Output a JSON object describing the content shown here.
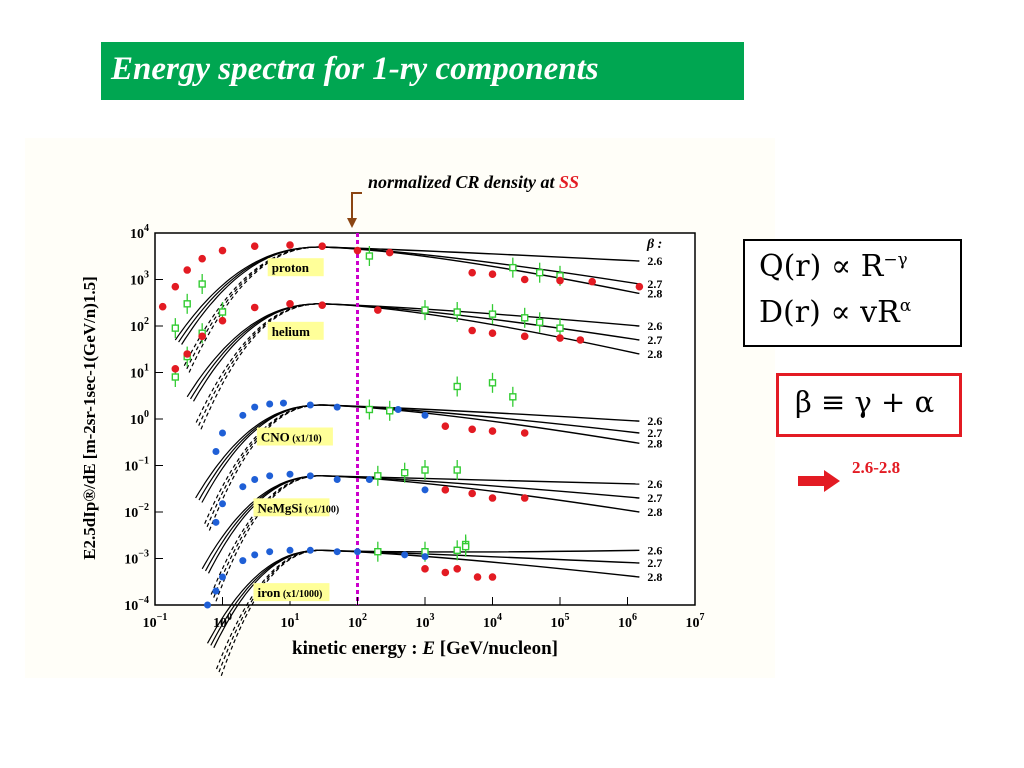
{
  "slide": {
    "title": "Energy spectra for 1-ry components"
  },
  "annotation": {
    "prefix": "normalized CR density at ",
    "highlight": "SS",
    "highlight_color": "#e31b23"
  },
  "formulas": {
    "q_text": "Q(r) ∝ R",
    "q_exp": "−γ",
    "d_text": "D(r) ∝ vR",
    "d_exp": "α",
    "beta_def": "β ≡ γ + α",
    "beta_range": "2.6-2.8"
  },
  "colors": {
    "title_bg": "#00a651",
    "accent_red": "#e31b23",
    "label_bg": "#ffff99",
    "marker_line": "#cc00cc",
    "arrow_brown": "#8b4513",
    "data_red": "#e31b23",
    "data_green": "#33cc33",
    "data_blue": "#1f5fd6"
  },
  "chart_data": {
    "type": "scatter",
    "xlabel_prefix": "kinetic energy :  ",
    "xlabel_var": "E",
    "xlabel_unit": " [GeV/nucleon]",
    "ylabel": "E2.5dIp®/dE [m-2sr-1sec-1(GeV/n)1.5]",
    "x_scale": "log",
    "y_scale": "log",
    "xlim": [
      0.1,
      10000000
    ],
    "ylim": [
      0.0001,
      10000
    ],
    "x_tick_exponents": [
      -1,
      0,
      1,
      2,
      3,
      4,
      5,
      6,
      7
    ],
    "y_tick_exponents": [
      4,
      3,
      2,
      1,
      0,
      -1,
      -2,
      -3,
      -4
    ],
    "tick_base": "10",
    "vertical_marker_x": 100,
    "beta_header": "β :",
    "beta_values": [
      "2.6",
      "2.7",
      "2.8"
    ],
    "series": [
      {
        "name": "proton",
        "peak_x": 10,
        "peak_y": 5000,
        "scale": 1,
        "high_e_y": [
          2500,
          800,
          500
        ]
      },
      {
        "name": "helium",
        "peak_x": 10,
        "peak_y": 300,
        "scale": 1,
        "high_e_y": [
          100,
          50,
          25
        ]
      },
      {
        "name": "CNO",
        "suffix": " (x1/10)",
        "peak_x": 10,
        "peak_y": 2,
        "scale": 0.1,
        "high_e_y": [
          0.9,
          0.5,
          0.3
        ]
      },
      {
        "name": "NeMgSi",
        "suffix": " (x1/100)",
        "peak_x": 10,
        "peak_y": 0.06,
        "scale": 0.01,
        "high_e_y": [
          0.04,
          0.02,
          0.01
        ]
      },
      {
        "name": "iron",
        "suffix": " (x1/1000)",
        "peak_x": 10,
        "peak_y": 0.0015,
        "scale": 0.001,
        "high_e_y": [
          0.0015,
          0.0008,
          0.0004
        ]
      }
    ],
    "data_sets": {
      "red_measurements": [
        {
          "series": "proton",
          "points": [
            [
              0.13,
              260
            ],
            [
              0.2,
              700
            ],
            [
              0.3,
              1600
            ],
            [
              0.5,
              2800
            ],
            [
              1,
              4200
            ],
            [
              3,
              5200
            ],
            [
              10,
              5500
            ],
            [
              30,
              5200
            ],
            [
              100,
              4200
            ],
            [
              300,
              3800
            ],
            [
              5000,
              1400
            ],
            [
              10000,
              1300
            ],
            [
              30000,
              1000
            ],
            [
              100000,
              950
            ],
            [
              300000,
              900
            ],
            [
              1500000,
              700
            ]
          ]
        },
        {
          "series": "helium",
          "points": [
            [
              0.2,
              12
            ],
            [
              0.3,
              25
            ],
            [
              0.5,
              60
            ],
            [
              1,
              130
            ],
            [
              3,
              250
            ],
            [
              10,
              300
            ],
            [
              30,
              280
            ],
            [
              200,
              220
            ],
            [
              5000,
              80
            ],
            [
              10000,
              70
            ],
            [
              30000,
              60
            ],
            [
              100000,
              55
            ],
            [
              200000,
              50
            ]
          ]
        },
        {
          "series": "CNO",
          "points": [
            [
              2000,
              0.7
            ],
            [
              5000,
              0.6
            ],
            [
              10000,
              0.55
            ],
            [
              30000,
              0.5
            ]
          ]
        },
        {
          "series": "NeMgSi",
          "points": [
            [
              2000,
              0.03
            ],
            [
              5000,
              0.025
            ],
            [
              10000,
              0.02
            ],
            [
              30000,
              0.02
            ]
          ]
        },
        {
          "series": "iron",
          "points": [
            [
              1000,
              0.0006
            ],
            [
              2000,
              0.0005
            ],
            [
              3000,
              0.0006
            ],
            [
              6000,
              0.0004
            ],
            [
              10000,
              0.0004
            ]
          ]
        }
      ],
      "green_measurements": [
        {
          "series": "proton",
          "points": [
            [
              0.2,
              90
            ],
            [
              0.3,
              300
            ],
            [
              0.5,
              800
            ],
            [
              150,
              3200
            ],
            [
              20000,
              1800
            ],
            [
              50000,
              1400
            ],
            [
              100000,
              1200
            ]
          ]
        },
        {
          "series": "helium",
          "points": [
            [
              0.2,
              8
            ],
            [
              0.3,
              22
            ],
            [
              0.5,
              70
            ],
            [
              1,
              200
            ],
            [
              1000,
              220
            ],
            [
              3000,
              200
            ],
            [
              10000,
              180
            ],
            [
              30000,
              150
            ],
            [
              50000,
              120
            ],
            [
              100000,
              90
            ]
          ]
        },
        {
          "series": "CNO",
          "points": [
            [
              150,
              1.6
            ],
            [
              300,
              1.5
            ],
            [
              3000,
              5
            ],
            [
              10000,
              6
            ],
            [
              20000,
              3
            ]
          ]
        },
        {
          "series": "NeMgSi",
          "points": [
            [
              200,
              0.06
            ],
            [
              500,
              0.07
            ],
            [
              1000,
              0.08
            ],
            [
              3000,
              0.08
            ],
            [
              4000,
              0.002
            ]
          ]
        },
        {
          "series": "iron",
          "points": [
            [
              200,
              0.0014
            ],
            [
              1000,
              0.0014
            ],
            [
              3000,
              0.0015
            ],
            [
              4000,
              0.0018
            ]
          ]
        }
      ],
      "blue_measurements": [
        {
          "series": "CNO",
          "points": [
            [
              0.8,
              0.2
            ],
            [
              1,
              0.5
            ],
            [
              2,
              1.2
            ],
            [
              3,
              1.8
            ],
            [
              5,
              2.1
            ],
            [
              8,
              2.2
            ],
            [
              20,
              2
            ],
            [
              50,
              1.8
            ],
            [
              400,
              1.6
            ],
            [
              1000,
              1.2
            ]
          ]
        },
        {
          "series": "NeMgSi",
          "points": [
            [
              0.8,
              0.006
            ],
            [
              1,
              0.015
            ],
            [
              2,
              0.035
            ],
            [
              3,
              0.05
            ],
            [
              5,
              0.06
            ],
            [
              10,
              0.065
            ],
            [
              20,
              0.06
            ],
            [
              50,
              0.05
            ],
            [
              150,
              0.05
            ],
            [
              1000,
              0.03
            ]
          ]
        },
        {
          "series": "iron",
          "points": [
            [
              0.6,
              0.0001
            ],
            [
              0.8,
              0.0002
            ],
            [
              1,
              0.0004
            ],
            [
              2,
              0.0009
            ],
            [
              3,
              0.0012
            ],
            [
              5,
              0.0014
            ],
            [
              10,
              0.0015
            ],
            [
              20,
              0.0015
            ],
            [
              50,
              0.0014
            ],
            [
              100,
              0.0014
            ],
            [
              500,
              0.0012
            ],
            [
              1000,
              0.0011
            ]
          ]
        }
      ]
    }
  }
}
